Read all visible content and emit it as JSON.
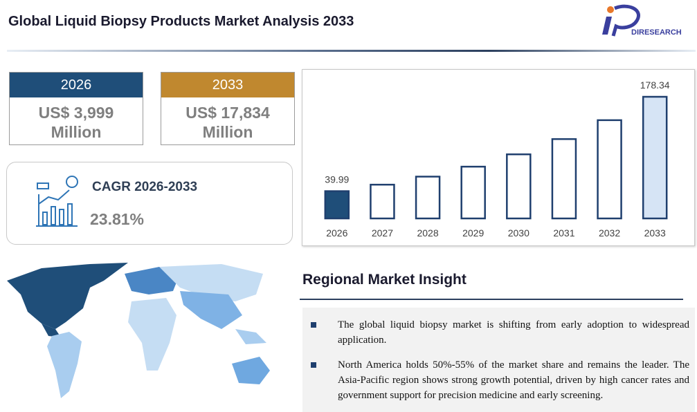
{
  "header": {
    "title": "Global Liquid Biopsy Products Market Analysis 2033",
    "logo": "DIRESEARCH"
  },
  "cards": [
    {
      "year": "2026",
      "value": "US$ 3,999",
      "unit": "Million"
    },
    {
      "year": "2033",
      "value": "US$ 17,834",
      "unit": "Million"
    }
  ],
  "cagr": {
    "label": "CAGR 2026-2033",
    "value": "23.81%"
  },
  "chart_data": {
    "type": "bar",
    "categories": [
      "2026",
      "2027",
      "2028",
      "2029",
      "2030",
      "2031",
      "2032",
      "2033"
    ],
    "values": [
      39.99,
      49.51,
      61.3,
      75.9,
      93.97,
      116.35,
      144.05,
      178.34
    ],
    "value_labels": [
      "39.99",
      null,
      null,
      null,
      null,
      null,
      null,
      "178.34"
    ],
    "colors": [
      "#1f4e79",
      "#ffffff",
      "#ffffff",
      "#ffffff",
      "#ffffff",
      "#ffffff",
      "#ffffff",
      "#d6e4f5"
    ],
    "edge_color": "#1f3f6e"
  },
  "insight": {
    "title": "Regional Market Insight",
    "bullets": [
      "The global liquid biopsy market is shifting from early adoption to widespread application.",
      "North America holds 50%-55% of the market share and remains the leader. The Asia-Pacific region shows strong growth potential, driven by high cancer rates and government support for precision medicine and early screening."
    ]
  }
}
